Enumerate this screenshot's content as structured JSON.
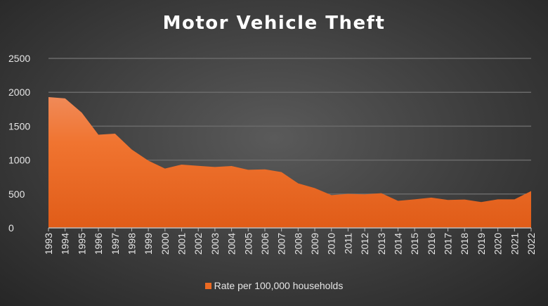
{
  "chart_data": {
    "type": "area",
    "title": "Motor Vehicle Theft",
    "xlabel": "",
    "ylabel": "",
    "ylim": [
      0,
      2500
    ],
    "yticks": [
      0,
      500,
      1000,
      1500,
      2000,
      2500
    ],
    "grid": true,
    "legend_position": "bottom",
    "categories": [
      "1993",
      "1994",
      "1995",
      "1996",
      "1997",
      "1998",
      "1999",
      "2000",
      "2001",
      "2002",
      "2003",
      "2004",
      "2005",
      "2006",
      "2007",
      "2008",
      "2009",
      "2010",
      "2011",
      "2012",
      "2013",
      "2014",
      "2015",
      "2016",
      "2017",
      "2018",
      "2019",
      "2020",
      "2021",
      "2022"
    ],
    "series": [
      {
        "name": "Rate per 100,000 households",
        "color": "#ec6a22",
        "values": [
          1930,
          1910,
          1700,
          1375,
          1390,
          1157,
          992,
          875,
          934,
          916,
          899,
          913,
          857,
          864,
          823,
          657,
          588,
          484,
          502,
          495,
          512,
          399,
          422,
          447,
          412,
          419,
          381,
          422,
          422,
          543
        ]
      }
    ]
  }
}
